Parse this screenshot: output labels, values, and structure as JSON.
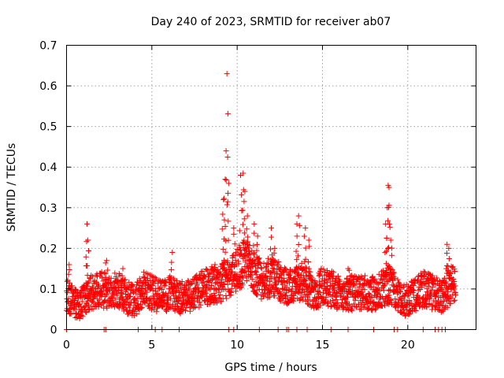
{
  "chart_data": {
    "type": "scatter",
    "title": "Day 240 of 2023, SRMTID for receiver ab07",
    "xlabel": "GPS time / hours",
    "ylabel": "SRMTID / TECUs",
    "xlim": [
      0,
      24
    ],
    "ylim": [
      0,
      0.7
    ],
    "xticks": [
      0,
      5,
      10,
      15,
      20
    ],
    "yticks": [
      0,
      0.1,
      0.2,
      0.3,
      0.4,
      0.5,
      0.6,
      0.7
    ],
    "xtick_labels": [
      "0",
      "5",
      "10",
      "15",
      "20"
    ],
    "ytick_labels": [
      "0",
      "0.1",
      "0.2",
      "0.3",
      "0.4",
      "0.5",
      "0.6",
      "0.7"
    ],
    "grid": true,
    "marker": "+",
    "series": [
      {
        "name": "SRMTID",
        "color": "#ff0000",
        "baseline": [
          [
            0.0,
            0.09
          ],
          [
            0.3,
            0.07
          ],
          [
            0.6,
            0.06
          ],
          [
            1.0,
            0.07
          ],
          [
            1.4,
            0.09
          ],
          [
            2.0,
            0.1
          ],
          [
            2.5,
            0.09
          ],
          [
            3.0,
            0.1
          ],
          [
            3.5,
            0.08
          ],
          [
            4.0,
            0.07
          ],
          [
            4.5,
            0.1
          ],
          [
            5.0,
            0.09
          ],
          [
            5.5,
            0.08
          ],
          [
            6.0,
            0.09
          ],
          [
            6.5,
            0.08
          ],
          [
            7.0,
            0.08
          ],
          [
            7.5,
            0.09
          ],
          [
            8.0,
            0.1
          ],
          [
            8.5,
            0.11
          ],
          [
            9.0,
            0.11
          ],
          [
            9.5,
            0.13
          ],
          [
            10.0,
            0.15
          ],
          [
            10.5,
            0.17
          ],
          [
            11.0,
            0.14
          ],
          [
            11.5,
            0.12
          ],
          [
            12.0,
            0.13
          ],
          [
            12.5,
            0.12
          ],
          [
            13.0,
            0.1
          ],
          [
            13.5,
            0.11
          ],
          [
            14.0,
            0.12
          ],
          [
            14.5,
            0.08
          ],
          [
            15.0,
            0.11
          ],
          [
            15.5,
            0.1
          ],
          [
            16.0,
            0.09
          ],
          [
            16.5,
            0.09
          ],
          [
            17.0,
            0.09
          ],
          [
            17.5,
            0.09
          ],
          [
            18.0,
            0.09
          ],
          [
            18.5,
            0.1
          ],
          [
            19.0,
            0.11
          ],
          [
            19.5,
            0.08
          ],
          [
            20.0,
            0.07
          ],
          [
            20.5,
            0.09
          ],
          [
            21.0,
            0.1
          ],
          [
            21.5,
            0.09
          ],
          [
            22.0,
            0.08
          ],
          [
            22.5,
            0.11
          ],
          [
            22.8,
            0.12
          ]
        ],
        "peaks": [
          [
            0.15,
            0.16
          ],
          [
            1.2,
            0.26
          ],
          [
            1.25,
            0.22
          ],
          [
            2.35,
            0.17
          ],
          [
            3.3,
            0.15
          ],
          [
            6.2,
            0.19
          ],
          [
            8.7,
            0.16
          ],
          [
            9.2,
            0.32
          ],
          [
            9.3,
            0.37
          ],
          [
            9.35,
            0.44
          ],
          [
            9.4,
            0.63
          ],
          [
            9.5,
            0.36
          ],
          [
            9.8,
            0.25
          ],
          [
            10.2,
            0.38
          ],
          [
            10.35,
            0.385
          ],
          [
            10.45,
            0.34
          ],
          [
            10.6,
            0.28
          ],
          [
            11.0,
            0.26
          ],
          [
            11.2,
            0.23
          ],
          [
            12.0,
            0.25
          ],
          [
            12.2,
            0.2
          ],
          [
            13.5,
            0.26
          ],
          [
            13.6,
            0.28
          ],
          [
            14.0,
            0.25
          ],
          [
            14.2,
            0.22
          ],
          [
            16.5,
            0.15
          ],
          [
            18.7,
            0.26
          ],
          [
            18.8,
            0.3
          ],
          [
            18.85,
            0.355
          ],
          [
            18.9,
            0.35
          ],
          [
            19.0,
            0.22
          ],
          [
            22.3,
            0.21
          ],
          [
            22.4,
            0.2
          ]
        ],
        "zeros": [
          0.0,
          2.2,
          2.3,
          4.2,
          5.2,
          5.6,
          6.6,
          9.5,
          9.8,
          11.3,
          12.4,
          12.9,
          13.0,
          13.5,
          14.1,
          15.5,
          16.5,
          18.0,
          19.2,
          19.4,
          20.9,
          21.6,
          21.8,
          22.0,
          22.2
        ],
        "end_time": 22.8,
        "points_per_hour": 100
      }
    ]
  }
}
